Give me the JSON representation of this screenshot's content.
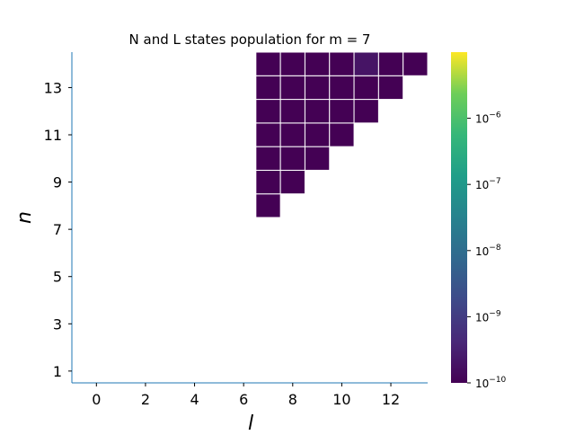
{
  "chart_data": {
    "type": "heatmap",
    "title": "N and L states population for m = 7",
    "xlabel": "l",
    "ylabel": "n",
    "xlim": [
      -1,
      13.5
    ],
    "ylim": [
      0.5,
      14.5
    ],
    "x_ticks": [
      0,
      2,
      4,
      6,
      8,
      10,
      12
    ],
    "y_ticks": [
      1,
      3,
      5,
      7,
      9,
      11,
      13
    ],
    "colorscale": "viridis",
    "color_scale_type": "log",
    "color_range": [
      1e-10,
      1e-05
    ],
    "colorbar_ticks": [
      {
        "value": 1e-10,
        "base": "10",
        "exp": "−10"
      },
      {
        "value": 1e-09,
        "base": "10",
        "exp": "−9"
      },
      {
        "value": 1e-08,
        "base": "10",
        "exp": "−8"
      },
      {
        "value": 1e-07,
        "base": "10",
        "exp": "−7"
      },
      {
        "value": 1e-06,
        "base": "10",
        "exp": "−6"
      }
    ],
    "cells": [
      {
        "l": 7,
        "n": 8,
        "value": 1e-10
      },
      {
        "l": 7,
        "n": 9,
        "value": 1e-10
      },
      {
        "l": 8,
        "n": 9,
        "value": 1e-10
      },
      {
        "l": 7,
        "n": 10,
        "value": 1e-10
      },
      {
        "l": 8,
        "n": 10,
        "value": 1e-10
      },
      {
        "l": 9,
        "n": 10,
        "value": 1e-10
      },
      {
        "l": 7,
        "n": 11,
        "value": 1e-10
      },
      {
        "l": 8,
        "n": 11,
        "value": 1e-10
      },
      {
        "l": 9,
        "n": 11,
        "value": 1e-10
      },
      {
        "l": 10,
        "n": 11,
        "value": 1e-10
      },
      {
        "l": 7,
        "n": 12,
        "value": 1e-10
      },
      {
        "l": 8,
        "n": 12,
        "value": 1e-10
      },
      {
        "l": 9,
        "n": 12,
        "value": 1e-10
      },
      {
        "l": 10,
        "n": 12,
        "value": 1e-10
      },
      {
        "l": 11,
        "n": 12,
        "value": 1e-10
      },
      {
        "l": 7,
        "n": 13,
        "value": 1e-10
      },
      {
        "l": 8,
        "n": 13,
        "value": 1e-10
      },
      {
        "l": 9,
        "n": 13,
        "value": 1e-10
      },
      {
        "l": 10,
        "n": 13,
        "value": 1e-10
      },
      {
        "l": 11,
        "n": 13,
        "value": 1e-10
      },
      {
        "l": 12,
        "n": 13,
        "value": 1e-10
      },
      {
        "l": 7,
        "n": 14,
        "value": 1e-10
      },
      {
        "l": 8,
        "n": 14,
        "value": 1e-10
      },
      {
        "l": 9,
        "n": 14,
        "value": 1e-10
      },
      {
        "l": 10,
        "n": 14,
        "value": 1e-10
      },
      {
        "l": 11,
        "n": 14,
        "value": 2e-10
      },
      {
        "l": 12,
        "n": 14,
        "value": 1e-10
      },
      {
        "l": 13,
        "n": 14,
        "value": 1e-10
      }
    ],
    "colors": {
      "axis_spine": "#1f77b4",
      "cell_border": "#ffffff"
    }
  }
}
